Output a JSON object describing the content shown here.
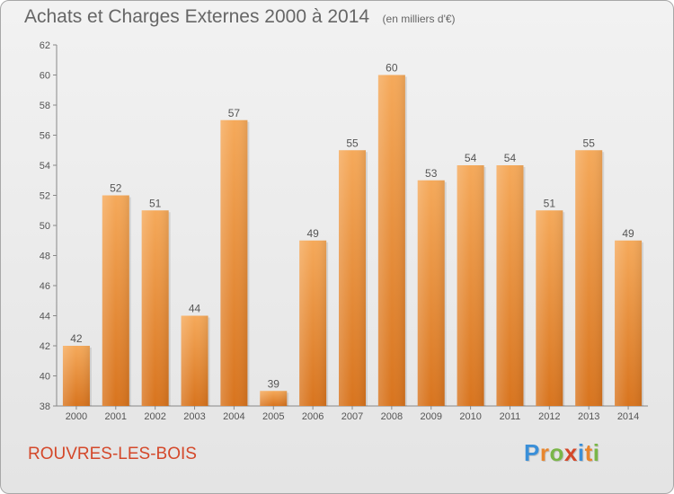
{
  "chart_data": {
    "type": "bar",
    "title": "Achats et Charges Externes 2000 à 2014",
    "subtitle": "(en milliers d'€)",
    "categories": [
      "2000",
      "2001",
      "2002",
      "2003",
      "2004",
      "2005",
      "2006",
      "2007",
      "2008",
      "2009",
      "2010",
      "2011",
      "2012",
      "2013",
      "2014"
    ],
    "values": [
      42,
      52,
      51,
      44,
      57,
      39,
      49,
      55,
      60,
      53,
      54,
      54,
      51,
      55,
      49
    ],
    "ylim": [
      38,
      62
    ],
    "yticks": [
      38,
      40,
      42,
      44,
      46,
      48,
      50,
      52,
      54,
      56,
      58,
      60,
      62
    ],
    "grid": false,
    "legend": "none",
    "bar_color": "#e8862e"
  },
  "footer": {
    "commune": "ROUVRES-LES-BOIS",
    "logo_letters": [
      "P",
      "r",
      "o",
      "x",
      "i",
      "t",
      "i"
    ],
    "logo_colors": [
      "#3a8fd8",
      "#e8862e",
      "#7ab648",
      "#d4482a",
      "#3a8fd8",
      "#e8862e",
      "#7ab648"
    ]
  }
}
